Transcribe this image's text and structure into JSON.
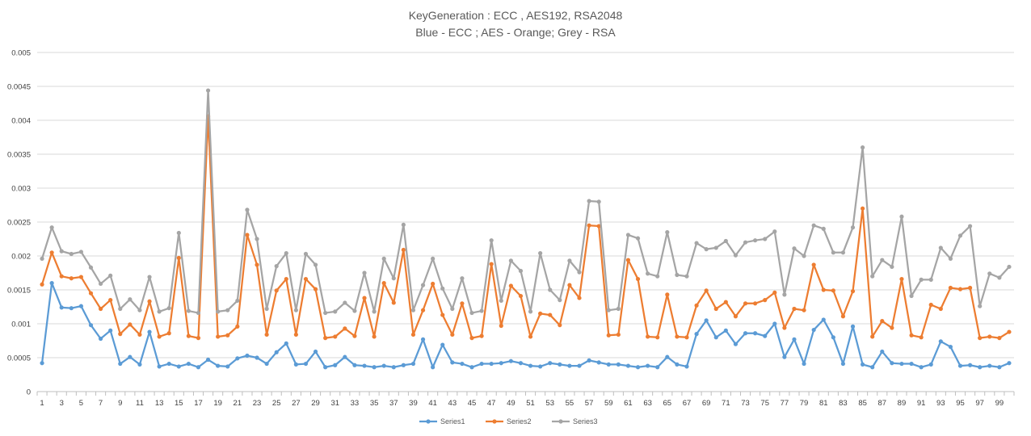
{
  "chart_data": {
    "type": "line",
    "title": "KeyGeneration : ECC , AES192, RSA2048",
    "subtitle": "Blue - ECC ; AES - Orange; Grey - RSA",
    "xlabel": "",
    "ylabel": "",
    "ylim": [
      0,
      0.005
    ],
    "yticks": [
      0,
      0.0005,
      0.001,
      0.0015,
      0.002,
      0.0025,
      0.003,
      0.0035,
      0.004,
      0.0045,
      0.005
    ],
    "ytick_labels": [
      "0",
      "0.0005",
      "0.001",
      "0.0015",
      "0.002",
      "0.0025",
      "0.003",
      "0.0035",
      "0.004",
      "0.0045",
      "0.005"
    ],
    "xticks_labeled": [
      1,
      3,
      5,
      7,
      9,
      11,
      13,
      15,
      17,
      19,
      21,
      23,
      25,
      27,
      29,
      31,
      33,
      35,
      37,
      39,
      41,
      43,
      45,
      47,
      49,
      51,
      53,
      55,
      57,
      59,
      61,
      63,
      65,
      67,
      69,
      71,
      73,
      75,
      77,
      79,
      81,
      83,
      85,
      87,
      89,
      91,
      93,
      95,
      97,
      99
    ],
    "grid": "horizontal",
    "legend_position": "bottom",
    "x": [
      1,
      2,
      3,
      4,
      5,
      6,
      7,
      8,
      9,
      10,
      11,
      12,
      13,
      14,
      15,
      16,
      17,
      18,
      19,
      20,
      21,
      22,
      23,
      24,
      25,
      26,
      27,
      28,
      29,
      30,
      31,
      32,
      33,
      34,
      35,
      36,
      37,
      38,
      39,
      40,
      41,
      42,
      43,
      44,
      45,
      46,
      47,
      48,
      49,
      50,
      51,
      52,
      53,
      54,
      55,
      56,
      57,
      58,
      59,
      60,
      61,
      62,
      63,
      64,
      65,
      66,
      67,
      68,
      69,
      70,
      71,
      72,
      73,
      74,
      75,
      76,
      77,
      78,
      79,
      80,
      81,
      82,
      83,
      84,
      85,
      86,
      87,
      88,
      89,
      90,
      91,
      92,
      93,
      94,
      95,
      96,
      97,
      98,
      99,
      100
    ],
    "series": [
      {
        "name": "Series1",
        "color": "#5b9bd5",
        "values": [
          0.00042,
          0.0016,
          0.00124,
          0.00123,
          0.00126,
          0.00098,
          0.00078,
          0.0009,
          0.00041,
          0.00051,
          0.0004,
          0.00088,
          0.00037,
          0.00041,
          0.00037,
          0.00041,
          0.00036,
          0.00047,
          0.00038,
          0.00037,
          0.00049,
          0.00053,
          0.0005,
          0.00041,
          0.00058,
          0.00071,
          0.0004,
          0.00041,
          0.00059,
          0.00036,
          0.00039,
          0.00051,
          0.00039,
          0.00038,
          0.00036,
          0.00038,
          0.00036,
          0.00039,
          0.00041,
          0.00077,
          0.00036,
          0.00069,
          0.00043,
          0.00041,
          0.00036,
          0.00041,
          0.00041,
          0.00042,
          0.00045,
          0.00042,
          0.00038,
          0.00037,
          0.00042,
          0.0004,
          0.00038,
          0.00038,
          0.00046,
          0.00043,
          0.0004,
          0.0004,
          0.00038,
          0.00036,
          0.00038,
          0.00036,
          0.00051,
          0.0004,
          0.00037,
          0.00085,
          0.00105,
          0.0008,
          0.0009,
          0.0007,
          0.00086,
          0.00086,
          0.00082,
          0.001,
          0.00051,
          0.00077,
          0.00041,
          0.00091,
          0.00106,
          0.0008,
          0.00041,
          0.00096,
          0.0004,
          0.00036,
          0.00059,
          0.00042,
          0.00041,
          0.00041,
          0.00036,
          0.0004,
          0.00074,
          0.00066,
          0.00038,
          0.00039,
          0.00036,
          0.00038,
          0.00036,
          0.00042
        ]
      },
      {
        "name": "Series2",
        "color": "#ed7d31",
        "values": [
          0.00158,
          0.00205,
          0.0017,
          0.00167,
          0.00169,
          0.00145,
          0.00122,
          0.00135,
          0.00085,
          0.00099,
          0.00084,
          0.00133,
          0.00081,
          0.00086,
          0.00197,
          0.00082,
          0.00079,
          0.00406,
          0.00081,
          0.00083,
          0.00096,
          0.00231,
          0.00187,
          0.00084,
          0.00149,
          0.00166,
          0.00084,
          0.00166,
          0.00151,
          0.00079,
          0.00081,
          0.00093,
          0.00082,
          0.00138,
          0.00081,
          0.0016,
          0.00131,
          0.00209,
          0.00084,
          0.0012,
          0.00159,
          0.00113,
          0.00084,
          0.0013,
          0.00079,
          0.00082,
          0.00188,
          0.00097,
          0.00156,
          0.00141,
          0.00081,
          0.00115,
          0.00113,
          0.00098,
          0.00157,
          0.00138,
          0.00245,
          0.00244,
          0.00083,
          0.00084,
          0.00194,
          0.00166,
          0.00081,
          0.0008,
          0.00143,
          0.00081,
          0.0008,
          0.00127,
          0.00149,
          0.00122,
          0.00132,
          0.00111,
          0.0013,
          0.0013,
          0.00135,
          0.00146,
          0.00094,
          0.00122,
          0.0012,
          0.00187,
          0.0015,
          0.00149,
          0.00111,
          0.00148,
          0.0027,
          0.00081,
          0.00104,
          0.00094,
          0.00166,
          0.00083,
          0.0008,
          0.00128,
          0.00122,
          0.00153,
          0.00151,
          0.00153,
          0.00079,
          0.00081,
          0.00079,
          0.00088
        ]
      },
      {
        "name": "Series3",
        "color": "#a5a5a5",
        "values": [
          0.00196,
          0.00242,
          0.00207,
          0.00203,
          0.00206,
          0.00183,
          0.00159,
          0.00171,
          0.00122,
          0.00136,
          0.0012,
          0.00169,
          0.00118,
          0.00123,
          0.00234,
          0.00119,
          0.00116,
          0.00444,
          0.00118,
          0.0012,
          0.00134,
          0.00268,
          0.00225,
          0.00122,
          0.00185,
          0.00204,
          0.0012,
          0.00203,
          0.00187,
          0.00116,
          0.00118,
          0.00131,
          0.00119,
          0.00175,
          0.00118,
          0.00196,
          0.00167,
          0.00246,
          0.0012,
          0.00157,
          0.00196,
          0.00152,
          0.00122,
          0.00167,
          0.00116,
          0.00119,
          0.00223,
          0.00134,
          0.00193,
          0.00178,
          0.00118,
          0.00204,
          0.0015,
          0.00135,
          0.00193,
          0.00176,
          0.00281,
          0.0028,
          0.0012,
          0.00122,
          0.00231,
          0.00226,
          0.00174,
          0.0017,
          0.00235,
          0.00172,
          0.0017,
          0.00219,
          0.0021,
          0.00212,
          0.00222,
          0.00201,
          0.0022,
          0.00223,
          0.00225,
          0.00236,
          0.00143,
          0.00211,
          0.002,
          0.00245,
          0.0024,
          0.00205,
          0.00205,
          0.00242,
          0.0036,
          0.0017,
          0.00194,
          0.00184,
          0.00258,
          0.00141,
          0.00165,
          0.00165,
          0.00212,
          0.00196,
          0.0023,
          0.00244,
          0.00126,
          0.00174,
          0.00168,
          0.00184
        ]
      }
    ]
  }
}
